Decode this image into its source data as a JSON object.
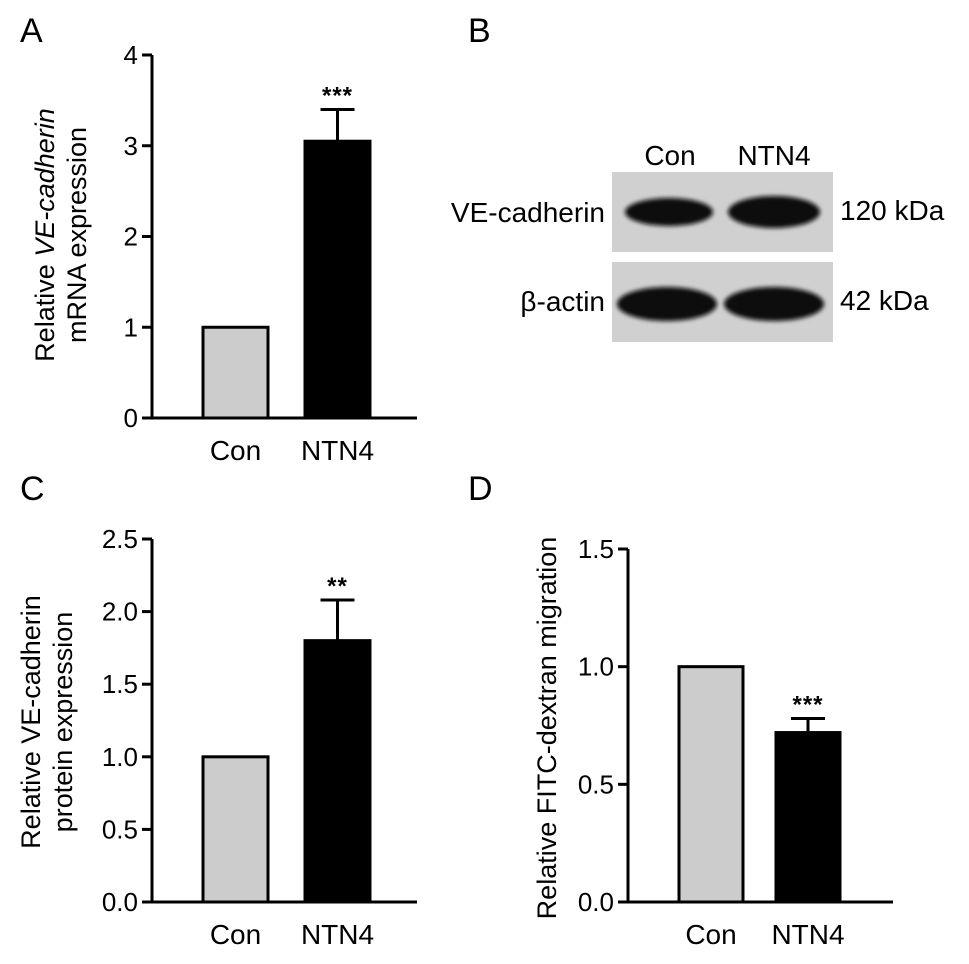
{
  "panels": {
    "A": {
      "letter": "A"
    },
    "B": {
      "letter": "B"
    },
    "C": {
      "letter": "C"
    },
    "D": {
      "letter": "D"
    }
  },
  "colors": {
    "con_bar": "#cccccc",
    "ntn4_bar": "#000000",
    "axis": "#000000"
  },
  "chart_data": [
    {
      "panel": "A",
      "type": "bar",
      "categories": [
        "Con",
        "NTN4"
      ],
      "values": [
        1.0,
        3.05
      ],
      "errors": [
        0,
        0.35
      ],
      "significance": [
        "",
        "***"
      ],
      "ylim": [
        0,
        4
      ],
      "yticks": [
        "0",
        "1",
        "2",
        "3",
        "4"
      ],
      "ylabel_line1_prefix": "Relative ",
      "ylabel_line1_italic": "VE-cadherin",
      "ylabel_line2": "mRNA expression",
      "colors": [
        "#cccccc",
        "#000000"
      ]
    },
    {
      "panel": "C",
      "type": "bar",
      "categories": [
        "Con",
        "NTN4"
      ],
      "values": [
        1.0,
        1.8
      ],
      "errors": [
        0,
        0.28
      ],
      "significance": [
        "",
        "**"
      ],
      "ylim": [
        0,
        2.5
      ],
      "yticks": [
        "0.0",
        "0.5",
        "1.0",
        "1.5",
        "2.0",
        "2.5"
      ],
      "ylabel_line1": "Relative VE-cadherin",
      "ylabel_line2": "protein expression",
      "colors": [
        "#cccccc",
        "#000000"
      ]
    },
    {
      "panel": "D",
      "type": "bar",
      "categories": [
        "Con",
        "NTN4"
      ],
      "values": [
        1.0,
        0.72
      ],
      "errors": [
        0,
        0.06
      ],
      "significance": [
        "",
        "***"
      ],
      "ylim": [
        0,
        1.5
      ],
      "yticks": [
        "0.0",
        "0.5",
        "1.0",
        "1.5"
      ],
      "ylabel": "Relative FITC-dextran migration",
      "colors": [
        "#cccccc",
        "#000000"
      ]
    }
  ],
  "blot": {
    "lanes": [
      "Con",
      "NTN4"
    ],
    "rows": [
      {
        "protein": "VE-cadherin",
        "size": "120 kDa"
      },
      {
        "protein": "β-actin",
        "size": "42 kDa"
      }
    ]
  }
}
